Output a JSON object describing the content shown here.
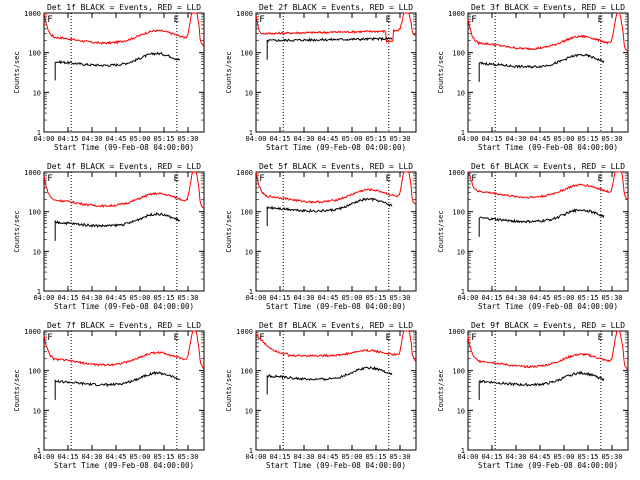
{
  "colors": {
    "events": "#000000",
    "lld": "#ff0000",
    "axis": "#000000",
    "marker": "#000000"
  },
  "chart_data": [
    {
      "type": "line",
      "title": "Det 1f BLACK = Events, RED = LLD",
      "xlabel": "Start Time (09-Feb-08 04:00:00)",
      "ylabel": "Counts/sec",
      "yscale": "log",
      "ylim": [
        1,
        1000
      ],
      "xticks": [
        "04:00",
        "04:15",
        "04:30",
        "04:45",
        "05:00",
        "05:15",
        "05:30"
      ],
      "yticks": [
        "1",
        "10",
        "100",
        "1000"
      ],
      "markers": [
        "F",
        "E"
      ],
      "vlines_min": [
        17,
        83
      ],
      "profile": "A",
      "lld_level": 250,
      "events_level": 60,
      "events_start_min": 7,
      "events_end_min": 85,
      "series": [
        {
          "name": "Events",
          "color": "#000000"
        },
        {
          "name": "LLD",
          "color": "#ff0000"
        }
      ]
    },
    {
      "type": "line",
      "title": "Det 2f BLACK = Events, RED = LLD",
      "xlabel": "Start Time (09-Feb-08 04:00:00)",
      "ylabel": "Counts/sec",
      "yscale": "log",
      "ylim": [
        1,
        1000
      ],
      "xticks": [
        "04:00",
        "04:15",
        "04:30",
        "04:45",
        "05:00",
        "05:15",
        "05:30"
      ],
      "yticks": [
        "1",
        "10",
        "100",
        "1000"
      ],
      "markers": [
        "F",
        "E"
      ],
      "vlines_min": [
        17,
        83
      ],
      "profile": "B",
      "lld_level": 300,
      "events_level": 200,
      "events_start_min": 7,
      "events_end_min": 85,
      "series": [
        {
          "name": "Events",
          "color": "#000000"
        },
        {
          "name": "LLD",
          "color": "#ff0000"
        }
      ]
    },
    {
      "type": "line",
      "title": "Det 3f BLACK = Events, RED = LLD",
      "xlabel": "Start Time (09-Feb-08 04:00:00)",
      "ylabel": "Counts/sec",
      "yscale": "log",
      "ylim": [
        1,
        1000
      ],
      "xticks": [
        "04:00",
        "04:15",
        "04:30",
        "04:45",
        "05:00",
        "05:15",
        "05:30"
      ],
      "yticks": [
        "1",
        "10",
        "100",
        "1000"
      ],
      "markers": [
        "F",
        "E"
      ],
      "vlines_min": [
        17,
        83
      ],
      "profile": "A",
      "lld_level": 180,
      "events_level": 55,
      "events_start_min": 7,
      "events_end_min": 85,
      "series": [
        {
          "name": "Events",
          "color": "#000000"
        },
        {
          "name": "LLD",
          "color": "#ff0000"
        }
      ]
    },
    {
      "type": "line",
      "title": "Det 4f BLACK = Events, RED = LLD",
      "xlabel": "Start Time (09-Feb-08 04:00:00)",
      "ylabel": "Counts/sec",
      "yscale": "log",
      "ylim": [
        1,
        1000
      ],
      "xticks": [
        "04:00",
        "04:15",
        "04:30",
        "04:45",
        "05:00",
        "05:15",
        "05:30"
      ],
      "yticks": [
        "1",
        "10",
        "100",
        "1000"
      ],
      "markers": [
        "F",
        "E"
      ],
      "vlines_min": [
        17,
        83
      ],
      "profile": "A",
      "lld_level": 200,
      "events_level": 55,
      "events_start_min": 7,
      "events_end_min": 85,
      "series": [
        {
          "name": "Events",
          "color": "#000000"
        },
        {
          "name": "LLD",
          "color": "#ff0000"
        }
      ]
    },
    {
      "type": "line",
      "title": "Det 5f BLACK = Events, RED = LLD",
      "xlabel": "Start Time (09-Feb-08 04:00:00)",
      "ylabel": "Counts/sec",
      "yscale": "log",
      "ylim": [
        1,
        1000
      ],
      "xticks": [
        "04:00",
        "04:15",
        "04:30",
        "04:45",
        "05:00",
        "05:15",
        "05:30"
      ],
      "yticks": [
        "1",
        "10",
        "100",
        "1000"
      ],
      "markers": [
        "F",
        "E"
      ],
      "vlines_min": [
        17,
        83
      ],
      "profile": "A",
      "lld_level": 250,
      "events_level": 130,
      "events_start_min": 7,
      "events_end_min": 85,
      "series": [
        {
          "name": "Events",
          "color": "#000000"
        },
        {
          "name": "LLD",
          "color": "#ff0000"
        }
      ]
    },
    {
      "type": "line",
      "title": "Det 6f BLACK = Events, RED = LLD",
      "xlabel": "Start Time (09-Feb-08 04:00:00)",
      "ylabel": "Counts/sec",
      "yscale": "log",
      "ylim": [
        1,
        1000
      ],
      "xticks": [
        "04:00",
        "04:15",
        "04:30",
        "04:45",
        "05:00",
        "05:15",
        "05:30"
      ],
      "yticks": [
        "1",
        "10",
        "100",
        "1000"
      ],
      "markers": [
        "F",
        "E"
      ],
      "vlines_min": [
        17,
        83
      ],
      "profile": "A",
      "lld_level": 330,
      "events_level": 70,
      "events_start_min": 7,
      "events_end_min": 85,
      "series": [
        {
          "name": "Events",
          "color": "#000000"
        },
        {
          "name": "LLD",
          "color": "#ff0000"
        }
      ]
    },
    {
      "type": "line",
      "title": "Det 7f BLACK = Events, RED = LLD",
      "xlabel": "Start Time (09-Feb-08 04:00:00)",
      "ylabel": "Counts/sec",
      "yscale": "log",
      "ylim": [
        1,
        1000
      ],
      "xticks": [
        "04:00",
        "04:15",
        "04:30",
        "04:45",
        "05:00",
        "05:15",
        "05:30"
      ],
      "yticks": [
        "1",
        "10",
        "100",
        "1000"
      ],
      "markers": [
        "F",
        "E"
      ],
      "vlines_min": [
        17,
        83
      ],
      "profile": "A",
      "lld_level": 200,
      "events_level": 55,
      "events_start_min": 7,
      "events_end_min": 85,
      "series": [
        {
          "name": "Events",
          "color": "#000000"
        },
        {
          "name": "LLD",
          "color": "#ff0000"
        }
      ]
    },
    {
      "type": "line",
      "title": "Det 8f BLACK = Events, RED = LLD",
      "xlabel": "Start Time (09-Feb-08 04:00:00)",
      "ylabel": "Counts/sec",
      "yscale": "log",
      "ylim": [
        1,
        1000
      ],
      "xticks": [
        "04:00",
        "04:15",
        "04:30",
        "04:45",
        "05:00",
        "05:15",
        "05:30"
      ],
      "yticks": [
        "1",
        "10",
        "100",
        "1000"
      ],
      "markers": [
        "F",
        "E"
      ],
      "vlines_min": [
        17,
        83
      ],
      "profile": "C",
      "lld_level": 240,
      "events_level": 75,
      "events_start_min": 7,
      "events_end_min": 85,
      "series": [
        {
          "name": "Events",
          "color": "#000000"
        },
        {
          "name": "LLD",
          "color": "#ff0000"
        }
      ]
    },
    {
      "type": "line",
      "title": "Det 9f BLACK = Events, RED = LLD",
      "xlabel": "Start Time (09-Feb-08 04:00:00)",
      "ylabel": "Counts/sec",
      "yscale": "log",
      "ylim": [
        1,
        1000
      ],
      "xticks": [
        "04:00",
        "04:15",
        "04:30",
        "04:45",
        "05:00",
        "05:15",
        "05:30"
      ],
      "yticks": [
        "1",
        "10",
        "100",
        "1000"
      ],
      "markers": [
        "F",
        "E"
      ],
      "vlines_min": [
        17,
        83
      ],
      "profile": "A",
      "lld_level": 180,
      "events_level": 55,
      "events_start_min": 7,
      "events_end_min": 85,
      "series": [
        {
          "name": "Events",
          "color": "#000000"
        },
        {
          "name": "LLD",
          "color": "#ff0000"
        }
      ]
    }
  ]
}
